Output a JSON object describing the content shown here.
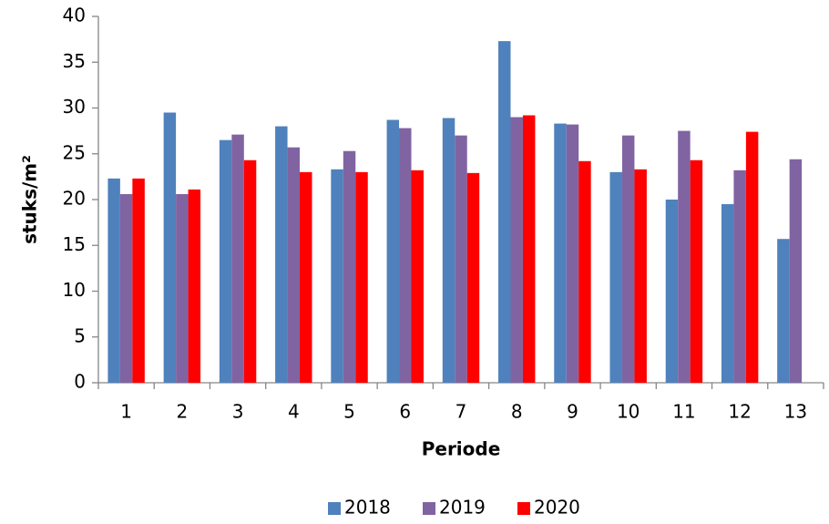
{
  "chart_data": {
    "type": "bar",
    "x_label": "Periode",
    "y_label": "stuks/m²",
    "categories": [
      "1",
      "2",
      "3",
      "4",
      "5",
      "6",
      "7",
      "8",
      "9",
      "10",
      "11",
      "12",
      "13"
    ],
    "series": [
      {
        "name": "2018",
        "color": "#4f81bd",
        "values": [
          22.3,
          29.5,
          26.5,
          28,
          23.3,
          28.7,
          28.9,
          37.3,
          28.3,
          23,
          20,
          19.5,
          15.7
        ]
      },
      {
        "name": "2019",
        "color": "#8064a2",
        "values": [
          20.6,
          20.6,
          27.1,
          25.7,
          25.3,
          27.8,
          27,
          29,
          28.2,
          27,
          27.5,
          23.2,
          24.4
        ]
      },
      {
        "name": "2020",
        "color": "#ff0000",
        "values": [
          22.3,
          21.1,
          24.3,
          23,
          23,
          23.2,
          22.9,
          29.2,
          24.2,
          23.3,
          24.3,
          27.4,
          null
        ]
      }
    ],
    "ylim": [
      0,
      40
    ],
    "yticks": [
      0,
      5,
      10,
      15,
      20,
      25,
      30,
      35,
      40
    ],
    "grid": false,
    "legend": "bottom"
  }
}
